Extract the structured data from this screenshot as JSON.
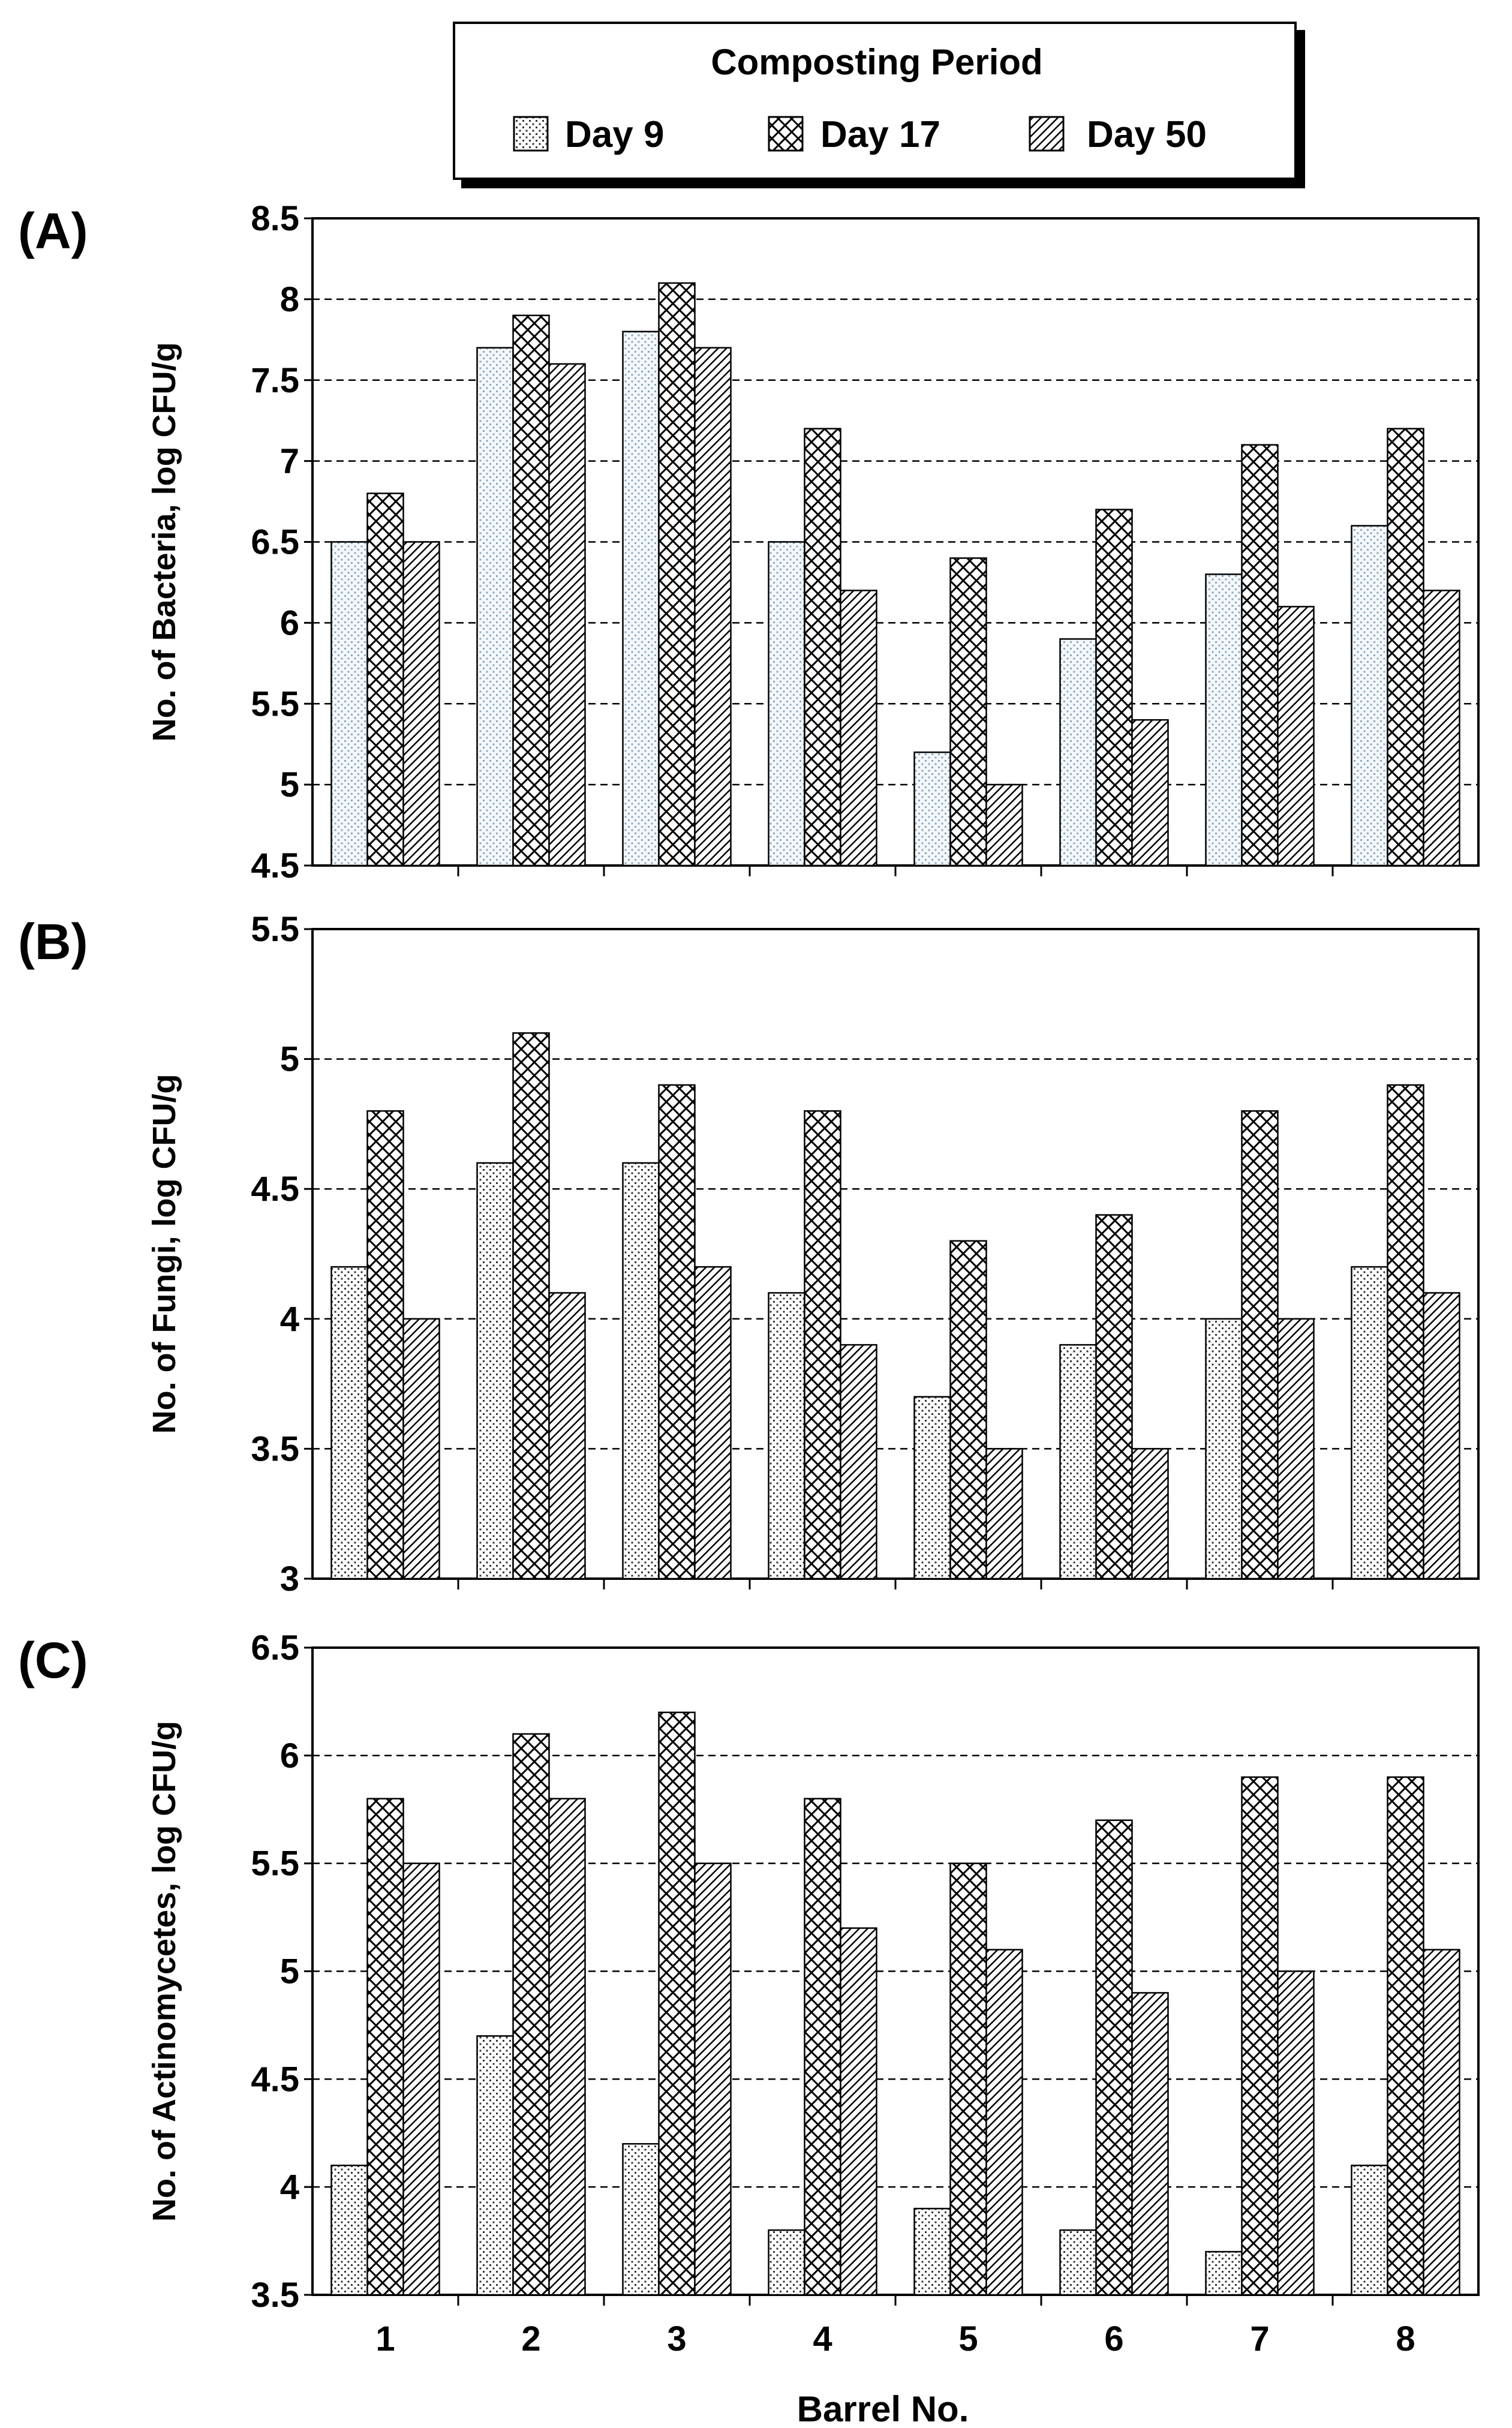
{
  "legend": {
    "title": "Composting Period",
    "entries": [
      {
        "label": "Day 9",
        "pattern": "dots"
      },
      {
        "label": "Day 17",
        "pattern": "crosshatch"
      },
      {
        "label": "Day 50",
        "pattern": "diagonal"
      }
    ]
  },
  "xlabel": "Barrel No.",
  "chart_data": [
    {
      "type": "bar",
      "panel_label": "(A)",
      "ylabel": "No. of Bacteria, log CFU/g",
      "ylim": [
        4.5,
        8.5
      ],
      "yticks": [
        "4.5",
        "5",
        "5.5",
        "6",
        "6.5",
        "7",
        "7.5",
        "8",
        "8.5"
      ],
      "categories": [
        "1",
        "2",
        "3",
        "4",
        "5",
        "6",
        "7",
        "8"
      ],
      "grid": true,
      "series": [
        {
          "name": "Day 9",
          "values": [
            6.5,
            7.7,
            7.8,
            6.5,
            5.2,
            5.9,
            6.3,
            6.6
          ]
        },
        {
          "name": "Day 17",
          "values": [
            6.8,
            7.9,
            8.1,
            7.2,
            6.4,
            6.7,
            7.1,
            7.2
          ]
        },
        {
          "name": "Day 50",
          "values": [
            6.5,
            7.6,
            7.7,
            6.2,
            5.0,
            5.4,
            6.1,
            6.2
          ]
        }
      ]
    },
    {
      "type": "bar",
      "panel_label": "(B)",
      "ylabel": "No. of Fungi, log CFU/g",
      "ylim": [
        3,
        5.5
      ],
      "yticks": [
        "3",
        "3.5",
        "4",
        "4.5",
        "5",
        "5.5"
      ],
      "categories": [
        "1",
        "2",
        "3",
        "4",
        "5",
        "6",
        "7",
        "8"
      ],
      "grid": true,
      "series": [
        {
          "name": "Day 9",
          "values": [
            4.2,
            4.6,
            4.6,
            4.1,
            3.7,
            3.9,
            4.0,
            4.2
          ]
        },
        {
          "name": "Day 17",
          "values": [
            4.8,
            5.1,
            4.9,
            4.8,
            4.3,
            4.4,
            4.8,
            4.9
          ]
        },
        {
          "name": "Day 50",
          "values": [
            4.0,
            4.1,
            4.2,
            3.9,
            3.5,
            3.5,
            4.0,
            4.1
          ]
        }
      ]
    },
    {
      "type": "bar",
      "panel_label": "(C)",
      "ylabel": "No. of Actinomycetes, log CFU/g",
      "ylim": [
        3.5,
        6.5
      ],
      "yticks": [
        "3.5",
        "4",
        "4.5",
        "5",
        "5.5",
        "6",
        "6.5"
      ],
      "categories": [
        "1",
        "2",
        "3",
        "4",
        "5",
        "6",
        "7",
        "8"
      ],
      "grid": true,
      "series": [
        {
          "name": "Day 9",
          "values": [
            4.1,
            4.7,
            4.2,
            3.8,
            3.9,
            3.8,
            3.7,
            4.1
          ]
        },
        {
          "name": "Day 17",
          "values": [
            5.8,
            6.1,
            6.2,
            5.8,
            5.5,
            5.7,
            5.9,
            5.9
          ]
        },
        {
          "name": "Day 50",
          "values": [
            5.5,
            5.8,
            5.5,
            5.2,
            5.1,
            4.9,
            5.0,
            5.1
          ]
        }
      ]
    }
  ]
}
